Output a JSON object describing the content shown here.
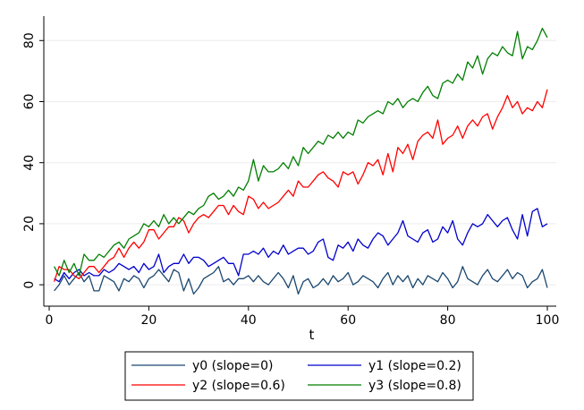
{
  "chart_data": {
    "type": "line",
    "title": "",
    "xlabel": "t",
    "ylabel": "",
    "xlim": [
      0,
      100
    ],
    "ylim": [
      -7,
      88
    ],
    "xticks": [
      0,
      20,
      40,
      60,
      80,
      100
    ],
    "yticks": [
      0,
      20,
      40,
      60,
      80
    ],
    "grid": "horizontal",
    "legend_position": "bottom",
    "series": [
      {
        "name": "y0 (slope=0)",
        "color": "#1a476f",
        "x": [
          1,
          2,
          3,
          4,
          5,
          6,
          7,
          8,
          9,
          10,
          11,
          12,
          13,
          14,
          15,
          16,
          17,
          18,
          19,
          20,
          21,
          22,
          23,
          24,
          25,
          26,
          27,
          28,
          29,
          30,
          31,
          32,
          33,
          34,
          35,
          36,
          37,
          38,
          39,
          40,
          41,
          42,
          43,
          44,
          45,
          46,
          47,
          48,
          49,
          50,
          51,
          52,
          53,
          54,
          55,
          56,
          57,
          58,
          59,
          60,
          61,
          62,
          63,
          64,
          65,
          66,
          67,
          68,
          69,
          70,
          71,
          72,
          73,
          74,
          75,
          76,
          77,
          78,
          79,
          80,
          81,
          82,
          83,
          84,
          85,
          86,
          87,
          88,
          89,
          90,
          91,
          92,
          93,
          94,
          95,
          96,
          97,
          98,
          99,
          100
        ],
        "y": [
          -2,
          0,
          3,
          0,
          2,
          4,
          1,
          3,
          -2,
          -2,
          3,
          2,
          1,
          -2,
          2,
          1,
          3,
          2,
          -1,
          2,
          3,
          5,
          3,
          1,
          5,
          4,
          -2,
          2,
          -3,
          -1,
          2,
          3,
          4,
          6,
          1,
          2,
          0,
          2,
          2,
          3,
          1,
          3,
          1,
          0,
          2,
          4,
          2,
          -1,
          3,
          -3,
          1,
          2,
          -1,
          0,
          2,
          0,
          3,
          1,
          2,
          4,
          0,
          1,
          3,
          2,
          1,
          -1,
          2,
          4,
          0,
          3,
          1,
          3,
          -1,
          2,
          0,
          3,
          2,
          1,
          4,
          2,
          -1,
          1,
          6,
          2,
          1,
          0,
          3,
          5,
          2,
          1,
          3,
          5,
          2,
          4,
          3,
          -1,
          1,
          2,
          5,
          -1
        ]
      },
      {
        "name": "y1 (slope=0.2)",
        "color": "#0000cd",
        "x": [
          1,
          2,
          3,
          4,
          5,
          6,
          7,
          8,
          9,
          10,
          11,
          12,
          13,
          14,
          15,
          16,
          17,
          18,
          19,
          20,
          21,
          22,
          23,
          24,
          25,
          26,
          27,
          28,
          29,
          30,
          31,
          32,
          33,
          34,
          35,
          36,
          37,
          38,
          39,
          40,
          41,
          42,
          43,
          44,
          45,
          46,
          47,
          48,
          49,
          50,
          51,
          52,
          53,
          54,
          55,
          56,
          57,
          58,
          59,
          60,
          61,
          62,
          63,
          64,
          65,
          66,
          67,
          68,
          69,
          70,
          71,
          72,
          73,
          74,
          75,
          76,
          77,
          78,
          79,
          80,
          81,
          82,
          83,
          84,
          85,
          86,
          87,
          88,
          89,
          90,
          91,
          92,
          93,
          94,
          95,
          96,
          97,
          98,
          99,
          100
        ],
        "y": [
          2,
          1,
          4,
          2,
          4,
          5,
          3,
          4,
          3,
          3,
          5,
          4,
          5,
          7,
          6,
          5,
          6,
          4,
          7,
          5,
          6,
          10,
          4,
          6,
          7,
          7,
          10,
          7,
          9,
          9,
          8,
          6,
          7,
          8,
          9,
          7,
          7,
          3,
          10,
          10,
          11,
          10,
          12,
          9,
          11,
          10,
          13,
          10,
          11,
          12,
          12,
          10,
          11,
          14,
          15,
          9,
          8,
          13,
          12,
          14,
          11,
          15,
          13,
          12,
          15,
          17,
          16,
          13,
          15,
          17,
          21,
          16,
          15,
          14,
          17,
          18,
          14,
          15,
          19,
          17,
          21,
          15,
          13,
          17,
          20,
          19,
          20,
          23,
          21,
          19,
          21,
          22,
          18,
          15,
          23,
          16,
          24,
          25,
          19,
          20
        ]
      },
      {
        "name": "y2 (slope=0.6)",
        "color": "#ff0000",
        "x": [
          1,
          2,
          3,
          4,
          5,
          6,
          7,
          8,
          9,
          10,
          11,
          12,
          13,
          14,
          15,
          16,
          17,
          18,
          19,
          20,
          21,
          22,
          23,
          24,
          25,
          26,
          27,
          28,
          29,
          30,
          31,
          32,
          33,
          34,
          35,
          36,
          37,
          38,
          39,
          40,
          41,
          42,
          43,
          44,
          45,
          46,
          47,
          48,
          49,
          50,
          51,
          52,
          53,
          54,
          55,
          56,
          57,
          58,
          59,
          60,
          61,
          62,
          63,
          64,
          65,
          66,
          67,
          68,
          69,
          70,
          71,
          72,
          73,
          74,
          75,
          76,
          77,
          78,
          79,
          80,
          81,
          82,
          83,
          84,
          85,
          86,
          87,
          88,
          89,
          90,
          91,
          92,
          93,
          94,
          95,
          96,
          97,
          98,
          99,
          100
        ],
        "y": [
          1,
          6,
          5,
          5,
          3,
          2,
          4,
          6,
          6,
          4,
          6,
          8,
          9,
          12,
          9,
          12,
          14,
          12,
          14,
          18,
          18,
          15,
          17,
          19,
          19,
          22,
          21,
          17,
          20,
          22,
          23,
          22,
          24,
          26,
          26,
          23,
          26,
          24,
          23,
          29,
          28,
          25,
          27,
          25,
          26,
          27,
          29,
          31,
          29,
          34,
          32,
          32,
          34,
          36,
          37,
          35,
          34,
          32,
          37,
          36,
          37,
          33,
          36,
          40,
          39,
          41,
          36,
          43,
          37,
          45,
          43,
          46,
          41,
          47,
          49,
          50,
          48,
          54,
          46,
          48,
          49,
          52,
          48,
          52,
          54,
          52,
          55,
          56,
          51,
          55,
          58,
          62,
          58,
          60,
          56,
          58,
          57,
          60,
          58,
          64
        ]
      },
      {
        "name": "y3 (slope=0.8)",
        "color": "#007f00",
        "x": [
          1,
          2,
          3,
          4,
          5,
          6,
          7,
          8,
          9,
          10,
          11,
          12,
          13,
          14,
          15,
          16,
          17,
          18,
          19,
          20,
          21,
          22,
          23,
          24,
          25,
          26,
          27,
          28,
          29,
          30,
          31,
          32,
          33,
          34,
          35,
          36,
          37,
          38,
          39,
          40,
          41,
          42,
          43,
          44,
          45,
          46,
          47,
          48,
          49,
          50,
          51,
          52,
          53,
          54,
          55,
          56,
          57,
          58,
          59,
          60,
          61,
          62,
          63,
          64,
          65,
          66,
          67,
          68,
          69,
          70,
          71,
          72,
          73,
          74,
          75,
          76,
          77,
          78,
          79,
          80,
          81,
          82,
          83,
          84,
          85,
          86,
          87,
          88,
          89,
          90,
          91,
          92,
          93,
          94,
          95,
          96,
          97,
          98,
          99,
          100
        ],
        "y": [
          6,
          3,
          8,
          4,
          7,
          3,
          10,
          8,
          8,
          10,
          9,
          11,
          13,
          14,
          12,
          15,
          16,
          17,
          20,
          19,
          21,
          19,
          23,
          20,
          22,
          20,
          22,
          24,
          23,
          25,
          26,
          29,
          30,
          28,
          29,
          31,
          29,
          32,
          31,
          34,
          41,
          34,
          39,
          37,
          37,
          38,
          40,
          38,
          42,
          39,
          45,
          43,
          45,
          47,
          46,
          49,
          48,
          50,
          48,
          50,
          49,
          54,
          53,
          55,
          56,
          57,
          56,
          60,
          59,
          61,
          58,
          60,
          61,
          60,
          63,
          65,
          62,
          61,
          66,
          67,
          66,
          69,
          67,
          73,
          71,
          75,
          69,
          74,
          76,
          75,
          78,
          76,
          75,
          83,
          74,
          78,
          77,
          80,
          84,
          81
        ]
      }
    ]
  }
}
